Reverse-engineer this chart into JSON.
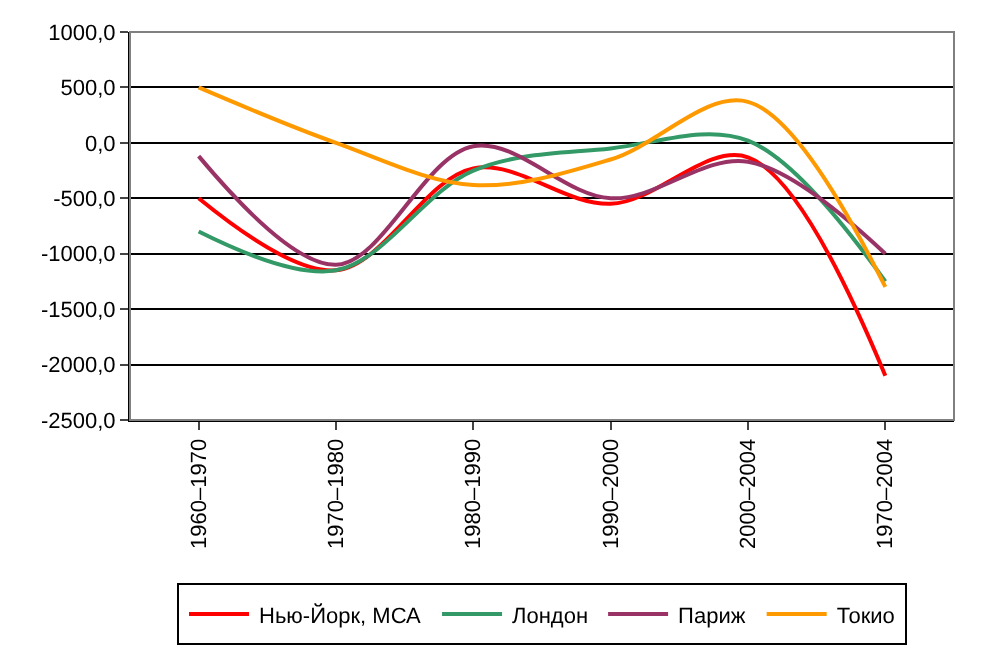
{
  "chart_data": {
    "type": "line",
    "categories": [
      "1960–1970",
      "1970–1980",
      "1980–1990",
      "1990–2000",
      "2000–2004",
      "1970–2004"
    ],
    "series": [
      {
        "name": "Нью-Йорк, МСА",
        "color": "#ff0000",
        "values": [
          -500,
          -1150,
          -230,
          -550,
          -130,
          -2100
        ]
      },
      {
        "name": "Лондон",
        "color": "#339966",
        "values": [
          -800,
          -1150,
          -250,
          -50,
          20,
          -1250
        ]
      },
      {
        "name": "Париж",
        "color": "#993366",
        "values": [
          -120,
          -1100,
          -30,
          -500,
          -170,
          -1000
        ]
      },
      {
        "name": "Токио",
        "color": "#ff9900",
        "values": [
          500,
          0,
          -380,
          -150,
          370,
          -1300
        ]
      }
    ],
    "ylim": [
      -2500,
      1000
    ],
    "yticks": [
      {
        "value": -2500,
        "label": "-2500,0"
      },
      {
        "value": -2000,
        "label": "-2000,0"
      },
      {
        "value": -1500,
        "label": "-1500,0"
      },
      {
        "value": -1000,
        "label": "-1000,0"
      },
      {
        "value": -500,
        "label": "-500,0"
      },
      {
        "value": 0,
        "label": "0,0"
      },
      {
        "value": 500,
        "label": "500,0"
      },
      {
        "value": 1000,
        "label": "1000,0"
      }
    ],
    "grid": "y",
    "legend": "bottom",
    "marker": "none",
    "line_style": "solid"
  }
}
